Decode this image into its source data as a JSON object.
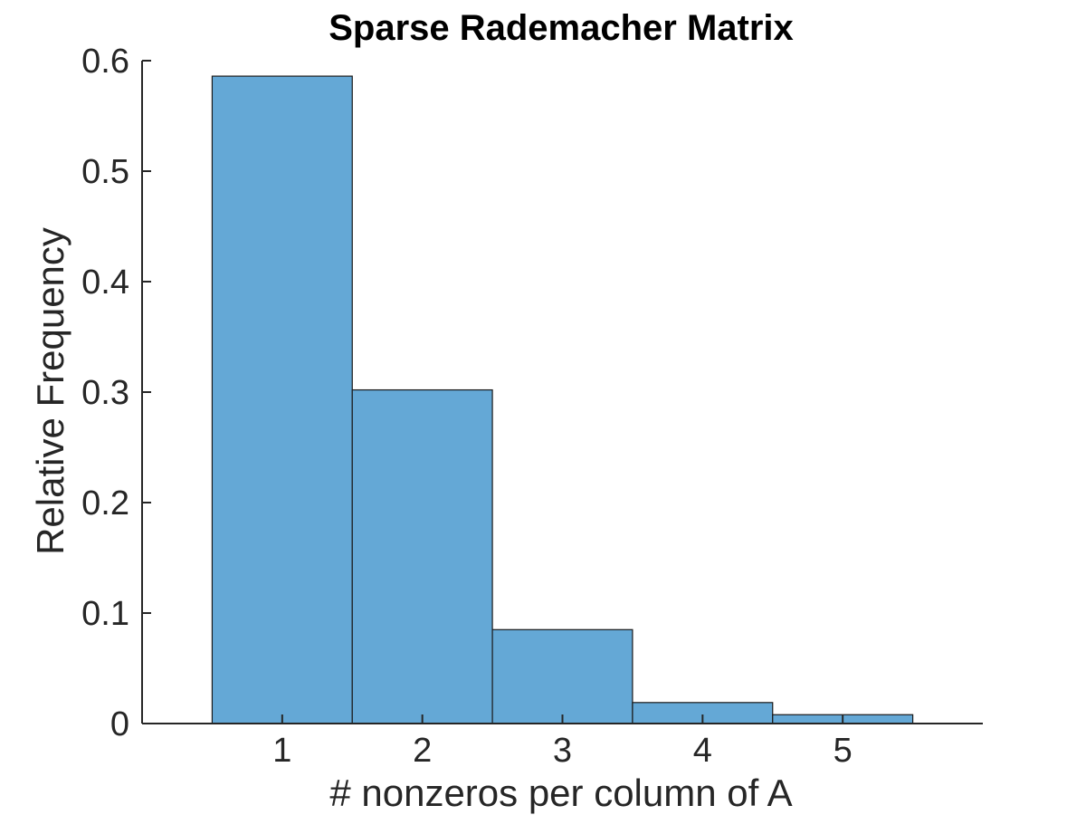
{
  "chart_data": {
    "type": "bar",
    "title": "Sparse Rademacher Matrix",
    "xlabel": "# nonzeros per column of A",
    "ylabel": "Relative Frequency",
    "categories": [
      1,
      2,
      3,
      4,
      5
    ],
    "values": [
      0.586,
      0.302,
      0.085,
      0.019,
      0.008
    ],
    "xlim": [
      0,
      6
    ],
    "ylim": [
      0,
      0.6
    ],
    "xticks": [
      "1",
      "2",
      "3",
      "4",
      "5"
    ],
    "yticks": [
      "0",
      "0.1",
      "0.2",
      "0.3",
      "0.4",
      "0.5",
      "0.6"
    ],
    "bar_color": "#64a8d6",
    "edge_color": "#1a1a1a",
    "grid": false,
    "legend": "none"
  }
}
